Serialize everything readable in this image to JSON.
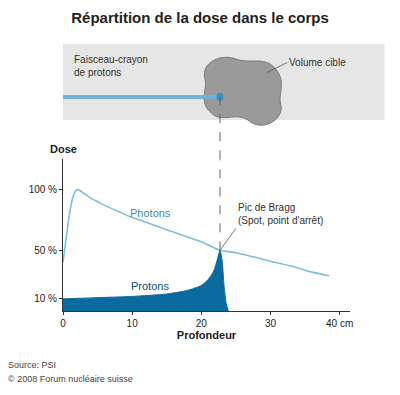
{
  "chart_data": {
    "type": "line",
    "title": "Répartition de la dose dans le corps",
    "xlabel": "Profondeur",
    "ylabel": "Dose",
    "xlim": [
      0,
      41.5
    ],
    "xticks": [
      0,
      10,
      20,
      30,
      {
        "value": 40,
        "label": "40 cm"
      }
    ],
    "ylim": [
      0,
      125
    ],
    "yticks": [
      {
        "value": 10,
        "label": "10 %"
      },
      {
        "value": 50,
        "label": "50 %"
      },
      {
        "value": 100,
        "label": "100 %"
      }
    ],
    "grid": false,
    "series": [
      {
        "name": "Photons",
        "type": "line",
        "color": "#7dbde0",
        "x": [
          0,
          0.5,
          1,
          1.5,
          2,
          2.5,
          3,
          4,
          5,
          6,
          8,
          10,
          12,
          15,
          18,
          20,
          22.7,
          25,
          28,
          30,
          33,
          36,
          38.5
        ],
        "values": [
          40,
          62,
          82,
          95,
          100,
          99,
          97,
          93,
          90,
          87,
          82,
          77,
          73,
          67,
          61,
          57,
          50,
          48,
          44,
          41,
          37,
          32,
          29
        ]
      },
      {
        "name": "Protons",
        "type": "area",
        "color": "#0b6aa0",
        "x": [
          0,
          5,
          10,
          15,
          18,
          20,
          21,
          21.8,
          22.3,
          22.7,
          23.0,
          23.3,
          23.6,
          23.9
        ],
        "values": [
          10,
          11,
          12,
          14,
          17,
          21,
          26,
          33,
          42,
          50,
          42,
          20,
          6,
          0
        ]
      }
    ],
    "annotations": [
      {
        "text": [
          "Pic de Bragg",
          "(Spot, point d'arrêt)"
        ],
        "x": 22.7,
        "y": 50
      }
    ],
    "diagram": {
      "beam_label": [
        "Faisceau-crayon",
        "de protons"
      ],
      "target_label": "Volume cible"
    },
    "source": [
      "Source: PSI",
      "© 2008 Forum nucléaire suisse"
    ]
  }
}
